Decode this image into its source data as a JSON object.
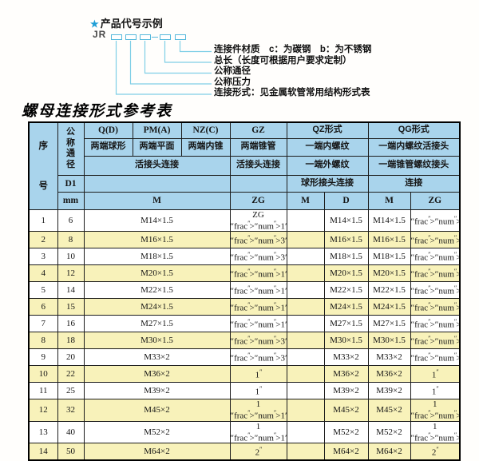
{
  "colors": {
    "header_blue": "#a9d4ec",
    "row_yellow": "#f8f2ba",
    "line_cyan": "#7fcfe6",
    "star_blue": "#1e9ed6"
  },
  "diagram": {
    "star": "★",
    "title": "产品代号示例",
    "prefix": "JR",
    "labels": [
      "连接件材质　c：为碳钢　b：为不锈钢",
      "总长（长度可根据用户要求定制）",
      "公称通径",
      "公称压力",
      "连接形式：见金属软管常用结构形式表"
    ]
  },
  "table": {
    "title": "螺母连接形式参考表",
    "header": {
      "seq": "序号",
      "nominal_diameter": "公称通径",
      "d1": "D1",
      "mm": "mm",
      "col_q": "Q(D)",
      "col_pm": "PM(A)",
      "col_nz": "NZ(C)",
      "col_gz": "GZ",
      "col_qz": "QZ形式",
      "col_qg": "QG形式",
      "q_desc": "两端球形",
      "pm_desc": "两端平面",
      "nz_desc": "两端内锥",
      "gz_desc": "两端锥管",
      "qz_desc1": "一端内螺纹",
      "qg_desc1": "一端内螺纹活接头",
      "union_conn": "活接头连接",
      "gz_conn": "活接头连接",
      "qz_desc2": "一端外螺纹",
      "qg_desc2": "一端锥管螺纹接头",
      "qz_conn": "球形接头连接",
      "qg_conn": "连接",
      "m_span": "M",
      "zg": "ZG",
      "qz_m": "M",
      "qz_d": "D",
      "qg_m": "M",
      "qg_zg": "ZG"
    },
    "rows": [
      [
        "1",
        "6",
        "M14×1.5",
        "ZG 1/4\"",
        "",
        "M14×1.5",
        "M14×1.5",
        "1/4\""
      ],
      [
        "2",
        "8",
        "M16×1.5",
        "3/8\"",
        "",
        "M16×1.5",
        "M16×1.5",
        "3/8\""
      ],
      [
        "3",
        "10",
        "M18×1.5",
        "3/8\"",
        "",
        "M18×1.5",
        "M18×1.5",
        "3/8\""
      ],
      [
        "4",
        "12",
        "M20×1.5",
        "1/2\"",
        "",
        "M20×1.5",
        "M20×1.5",
        "1/2\""
      ],
      [
        "5",
        "14",
        "M22×1.5",
        "1/2\"",
        "",
        "M22×1.5",
        "M22×1.5",
        "1/2\""
      ],
      [
        "6",
        "15",
        "M24×1.5",
        "1/2\"",
        "",
        "M24×1.5",
        "M24×1.5",
        "1/2\""
      ],
      [
        "7",
        "16",
        "M27×1.5",
        "1/2\"",
        "",
        "M27×1.5",
        "M27×1.5",
        "1/2\""
      ],
      [
        "8",
        "18",
        "M30×1.5",
        "3/4\"",
        "",
        "M30×1.5",
        "M30×1.5",
        "3/4\""
      ],
      [
        "9",
        "20",
        "M33×2",
        "3/4\"",
        "",
        "M33×2",
        "M33×2",
        "3/4\""
      ],
      [
        "10",
        "22",
        "M36×2",
        "1\"",
        "",
        "M36×2",
        "M36×2",
        "1\""
      ],
      [
        "11",
        "25",
        "M39×2",
        "1\"",
        "",
        "M39×2",
        "M39×2",
        "1\""
      ],
      [
        "12",
        "32",
        "M45×2",
        "1 1/4\"",
        "",
        "M45×2",
        "M45×2",
        "1 1/4\""
      ],
      [
        "13",
        "40",
        "M52×2",
        "1 1/2\"",
        "",
        "M52×2",
        "M52×2",
        "1 1/2\""
      ],
      [
        "14",
        "50",
        "M64×2",
        "2\"",
        "",
        "M64×2",
        "M64×2",
        "2\""
      ]
    ]
  }
}
